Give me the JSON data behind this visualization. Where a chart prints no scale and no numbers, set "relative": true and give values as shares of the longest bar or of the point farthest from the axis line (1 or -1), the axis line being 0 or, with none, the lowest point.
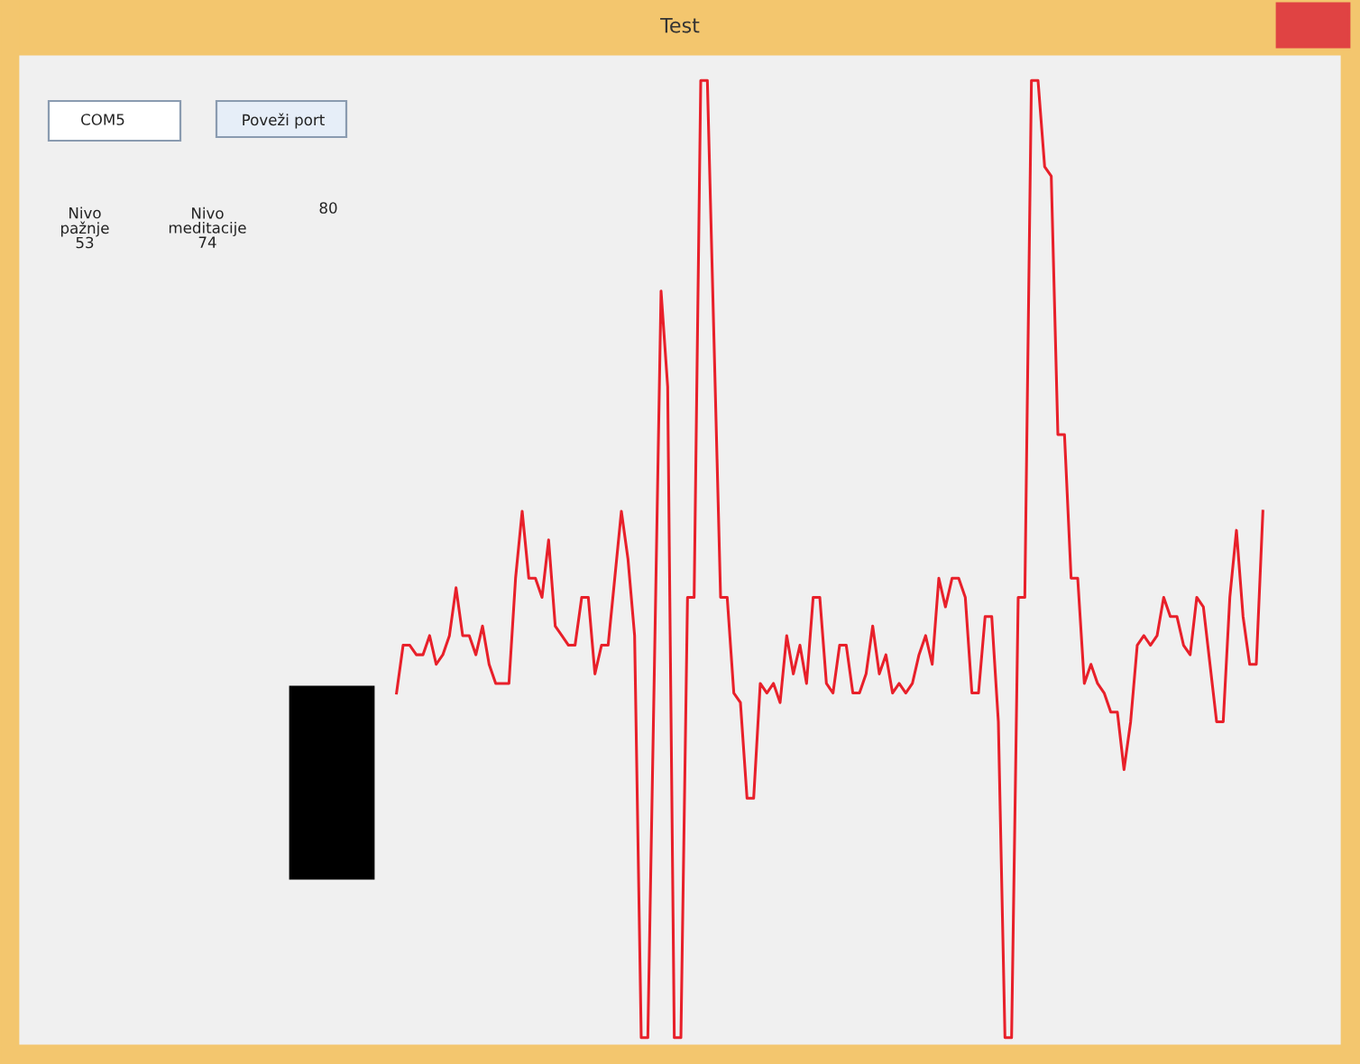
{
  "chart_data": {
    "type": "line",
    "title": "Test",
    "relative": true,
    "annotations": [
      "COM5",
      "Poveži port",
      "Nivo\npažnje\n53",
      "Nivo\nmeditacije\n74",
      "80"
    ],
    "categories": [
      null,
      null,
      null,
      null,
      null,
      null,
      null,
      null,
      null,
      null,
      null,
      null,
      null,
      null,
      null,
      null,
      null,
      null,
      null,
      null,
      null,
      null,
      null,
      null,
      null,
      null,
      null,
      null,
      null,
      null,
      null,
      null,
      null,
      null,
      null,
      null,
      null,
      null,
      null,
      null,
      null,
      null,
      null,
      null,
      null,
      null,
      null,
      null,
      null,
      null,
      null,
      null,
      null,
      null,
      null,
      null,
      null,
      null,
      null,
      null,
      null,
      null,
      null,
      null,
      null,
      null,
      null,
      null,
      null,
      null,
      null,
      null,
      null,
      null,
      null,
      null,
      null,
      null,
      null,
      null,
      null,
      null,
      null,
      null,
      null,
      null,
      null,
      null,
      null,
      null,
      null,
      null,
      null,
      null,
      null,
      null,
      null,
      null,
      null,
      null,
      null,
      null,
      null,
      null,
      null,
      null,
      null,
      null,
      null,
      null,
      null,
      null,
      null,
      null,
      null,
      null,
      null,
      null,
      null,
      null,
      null,
      null,
      null,
      null,
      null,
      null,
      null,
      null,
      null,
      null,
      null,
      null
    ],
    "series": [
      {
        "color": "#e8202a",
        "values": [
          0.36,
          0.41,
          0.41,
          0.4,
          0.4,
          0.42,
          0.39,
          0.4,
          0.42,
          0.47,
          0.42,
          0.42,
          0.4,
          0.43,
          0.39,
          0.37,
          0.37,
          0.37,
          0.48,
          0.55,
          0.48,
          0.48,
          0.46,
          0.52,
          0.43,
          0.42,
          0.41,
          0.41,
          0.46,
          0.46,
          0.38,
          0.41,
          0.41,
          0.48,
          0.55,
          0.5,
          0.42,
          0,
          0,
          0.39,
          0.78,
          0.68,
          0,
          0,
          0.46,
          0.46,
          1,
          1,
          0.73,
          0.46,
          0.46,
          0.36,
          0.35,
          0.25,
          0.25,
          0.37,
          0.36,
          0.37,
          0.35,
          0.42,
          0.38,
          0.41,
          0.37,
          0.46,
          0.46,
          0.37,
          0.36,
          0.41,
          0.41,
          0.36,
          0.36,
          0.38,
          0.43,
          0.38,
          0.4,
          0.36,
          0.37,
          0.36,
          0.37,
          0.4,
          0.42,
          0.39,
          0.48,
          0.45,
          0.48,
          0.48,
          0.46,
          0.36,
          0.36,
          0.44,
          0.44,
          0.33,
          0,
          0,
          0.46,
          0.46,
          1,
          1,
          0.91,
          0.9,
          0.63,
          0.63,
          0.48,
          0.48,
          0.37,
          0.39,
          0.37,
          0.36,
          0.34,
          0.34,
          0.28,
          0.33,
          0.41,
          0.42,
          0.41,
          0.42,
          0.46,
          0.44,
          0.44,
          0.41,
          0.4,
          0.46,
          0.45,
          0.39,
          0.33,
          0.33,
          0.46,
          0.53,
          0.44,
          0.39,
          0.39,
          0.55
        ]
      }
    ]
  }
}
